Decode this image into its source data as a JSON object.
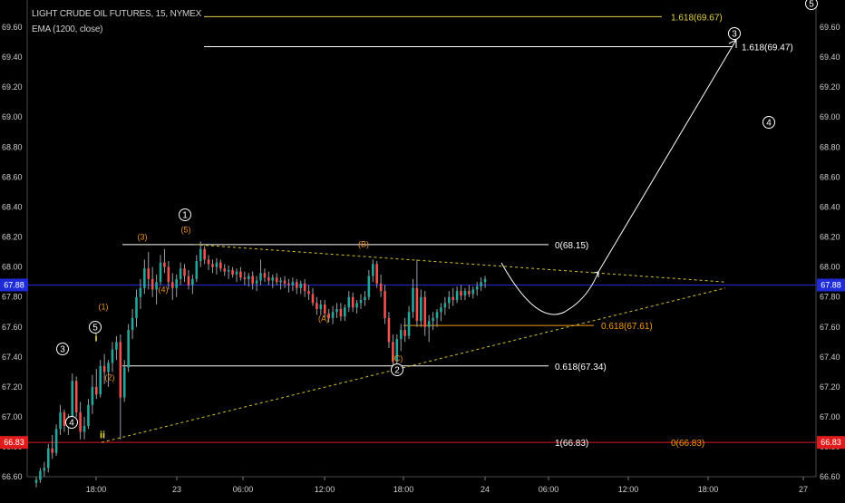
{
  "header": {
    "title": "LIGHT CRUDE OIL FUTURES, 15, NYMEX",
    "indicator": "EMA (1200, close)"
  },
  "colors": {
    "background": "#000000",
    "up": "#26a69a",
    "down": "#ef5350",
    "wick": "#9aa0a6",
    "text": "#cfcfcf",
    "fib_white": "#ffffff",
    "fib_orange": "#f39c12",
    "fib_yellow": "#e4d14b",
    "triangle": "#d4c22f",
    "price_line": "#1e2bd6",
    "red_line": "#e01b1b",
    "wave_orange": "#e8932b",
    "wave_white": "#ffffff",
    "wave_yellow": "#f1e04d"
  },
  "chart_data": {
    "type": "candlestick",
    "x_ticks": [
      "18:00",
      "23",
      "06:00",
      "12:00",
      "18:00",
      "24",
      "06:00",
      "12:00",
      "18:00",
      "27"
    ],
    "y_ticks": [
      "66.60",
      "66.80",
      "67.00",
      "67.20",
      "67.40",
      "67.60",
      "67.80",
      "68.00",
      "68.20",
      "68.40",
      "68.60",
      "68.80",
      "69.00",
      "69.20",
      "69.40",
      "69.60"
    ],
    "ylim": [
      66.5,
      69.65
    ],
    "current_price": {
      "value": 67.88,
      "label": "67.88"
    },
    "red_level": {
      "value": 66.83,
      "label": "66.83"
    },
    "ohlc": [
      [
        66.56,
        66.6,
        66.53,
        66.58
      ],
      [
        66.58,
        66.66,
        66.56,
        66.64
      ],
      [
        66.64,
        66.7,
        66.6,
        66.66
      ],
      [
        66.66,
        66.82,
        66.63,
        66.79
      ],
      [
        66.79,
        66.88,
        66.72,
        66.76
      ],
      [
        66.76,
        66.95,
        66.74,
        66.92
      ],
      [
        66.92,
        67.08,
        66.88,
        67.03
      ],
      [
        67.03,
        67.05,
        66.9,
        66.94
      ],
      [
        66.94,
        67.02,
        66.88,
        66.97
      ],
      [
        66.97,
        67.29,
        66.95,
        67.24
      ],
      [
        67.24,
        67.27,
        67.0,
        67.03
      ],
      [
        67.03,
        67.1,
        66.85,
        66.9
      ],
      [
        66.9,
        67.0,
        66.85,
        66.94
      ],
      [
        66.94,
        67.12,
        66.92,
        67.08
      ],
      [
        67.08,
        67.28,
        67.02,
        67.2
      ],
      [
        67.2,
        67.32,
        67.12,
        67.15
      ],
      [
        67.15,
        67.38,
        67.13,
        67.34
      ],
      [
        67.34,
        67.42,
        67.22,
        67.3
      ],
      [
        67.3,
        67.38,
        67.2,
        67.36
      ],
      [
        67.36,
        67.5,
        67.3,
        67.45
      ],
      [
        67.45,
        67.54,
        67.38,
        67.5
      ],
      [
        67.5,
        67.55,
        66.85,
        67.13
      ],
      [
        67.13,
        67.38,
        67.1,
        67.33
      ],
      [
        67.33,
        67.62,
        67.3,
        67.58
      ],
      [
        67.58,
        67.72,
        67.52,
        67.66
      ],
      [
        67.66,
        67.85,
        67.6,
        67.8
      ],
      [
        67.8,
        67.92,
        67.72,
        67.86
      ],
      [
        67.86,
        68.05,
        67.82,
        67.99
      ],
      [
        67.99,
        68.1,
        67.85,
        67.92
      ],
      [
        67.92,
        68.0,
        67.8,
        67.85
      ],
      [
        67.85,
        67.95,
        67.75,
        67.9
      ],
      [
        67.9,
        68.08,
        67.88,
        68.03
      ],
      [
        68.03,
        68.12,
        67.96,
        68.0
      ],
      [
        68.0,
        68.04,
        67.85,
        67.9
      ],
      [
        67.9,
        67.96,
        67.78,
        67.86
      ],
      [
        67.86,
        67.95,
        67.8,
        67.92
      ],
      [
        67.92,
        68.03,
        67.88,
        67.99
      ],
      [
        67.99,
        68.02,
        67.9,
        67.94
      ],
      [
        67.94,
        67.98,
        67.85,
        67.88
      ],
      [
        67.88,
        67.95,
        67.82,
        67.92
      ],
      [
        67.92,
        68.08,
        67.9,
        68.04
      ],
      [
        68.04,
        68.17,
        68.0,
        68.12
      ],
      [
        68.12,
        68.14,
        68.02,
        68.05
      ],
      [
        68.05,
        68.08,
        67.98,
        68.02
      ],
      [
        68.02,
        68.05,
        67.96,
        68.0
      ],
      [
        68.0,
        68.06,
        67.95,
        68.03
      ],
      [
        68.03,
        68.05,
        67.97,
        67.99
      ],
      [
        67.99,
        68.02,
        67.94,
        67.97
      ],
      [
        67.97,
        68.01,
        67.92,
        67.98
      ],
      [
        67.98,
        68.0,
        67.93,
        67.95
      ],
      [
        67.95,
        67.99,
        67.9,
        67.97
      ],
      [
        67.97,
        68.0,
        67.91,
        67.93
      ],
      [
        67.93,
        67.97,
        67.88,
        67.92
      ],
      [
        67.92,
        67.96,
        67.87,
        67.94
      ],
      [
        67.94,
        67.97,
        67.85,
        67.89
      ],
      [
        67.89,
        67.94,
        67.84,
        67.91
      ],
      [
        67.91,
        68.05,
        67.88,
        67.96
      ],
      [
        67.96,
        67.99,
        67.9,
        67.93
      ],
      [
        67.93,
        67.97,
        67.88,
        67.91
      ],
      [
        67.91,
        67.95,
        67.86,
        67.93
      ],
      [
        67.93,
        67.96,
        67.88,
        67.9
      ],
      [
        67.9,
        67.93,
        67.85,
        67.91
      ],
      [
        67.91,
        67.94,
        67.86,
        67.89
      ],
      [
        67.89,
        67.92,
        67.83,
        67.88
      ],
      [
        67.88,
        67.93,
        67.84,
        67.9
      ],
      [
        67.9,
        67.92,
        67.82,
        67.86
      ],
      [
        67.86,
        67.91,
        67.82,
        67.89
      ],
      [
        67.89,
        67.92,
        67.8,
        67.84
      ],
      [
        67.84,
        67.88,
        67.78,
        67.82
      ],
      [
        67.82,
        67.86,
        67.74,
        67.76
      ],
      [
        67.76,
        67.8,
        67.68,
        67.72
      ],
      [
        67.72,
        67.78,
        67.68,
        67.75
      ],
      [
        67.75,
        67.78,
        67.66,
        67.69
      ],
      [
        67.69,
        67.72,
        67.63,
        67.66
      ],
      [
        67.66,
        67.74,
        67.62,
        67.7
      ],
      [
        67.7,
        67.76,
        67.66,
        67.72
      ],
      [
        67.72,
        67.76,
        67.64,
        67.67
      ],
      [
        67.67,
        67.75,
        67.64,
        67.73
      ],
      [
        67.73,
        67.84,
        67.7,
        67.8
      ],
      [
        67.8,
        67.83,
        67.7,
        67.73
      ],
      [
        67.73,
        67.78,
        67.69,
        67.76
      ],
      [
        67.76,
        67.82,
        67.72,
        67.78
      ],
      [
        67.78,
        67.84,
        67.74,
        67.8
      ],
      [
        67.8,
        67.98,
        67.78,
        67.94
      ],
      [
        67.94,
        68.05,
        67.9,
        68.02
      ],
      [
        68.02,
        68.04,
        67.86,
        67.89
      ],
      [
        67.89,
        67.95,
        67.8,
        67.84
      ],
      [
        67.84,
        67.88,
        67.62,
        67.66
      ],
      [
        67.66,
        67.7,
        67.46,
        67.5
      ],
      [
        67.5,
        67.55,
        67.3,
        67.37
      ],
      [
        67.37,
        67.55,
        67.34,
        67.52
      ],
      [
        67.52,
        67.62,
        67.44,
        67.58
      ],
      [
        67.58,
        67.66,
        67.5,
        67.54
      ],
      [
        67.54,
        67.74,
        67.52,
        67.7
      ],
      [
        67.7,
        67.92,
        67.66,
        67.86
      ],
      [
        67.86,
        68.05,
        67.6,
        67.64
      ],
      [
        67.64,
        67.85,
        67.6,
        67.8
      ],
      [
        67.8,
        67.84,
        67.54,
        67.6
      ],
      [
        67.6,
        67.68,
        67.5,
        67.64
      ],
      [
        67.64,
        67.7,
        67.58,
        67.66
      ],
      [
        67.66,
        67.72,
        67.6,
        67.7
      ],
      [
        67.7,
        67.76,
        67.64,
        67.73
      ],
      [
        67.73,
        67.8,
        67.68,
        67.76
      ],
      [
        67.76,
        67.84,
        67.72,
        67.8
      ],
      [
        67.8,
        67.86,
        67.74,
        67.78
      ],
      [
        67.78,
        67.87,
        67.76,
        67.84
      ],
      [
        67.84,
        67.88,
        67.78,
        67.81
      ],
      [
        67.81,
        67.86,
        67.78,
        67.84
      ],
      [
        67.84,
        67.88,
        67.8,
        67.82
      ],
      [
        67.82,
        67.87,
        67.79,
        67.85
      ],
      [
        67.85,
        67.9,
        67.81,
        67.87
      ],
      [
        67.87,
        67.93,
        67.84,
        67.9
      ],
      [
        67.9,
        67.94,
        67.86,
        67.92
      ]
    ],
    "fib_levels": [
      {
        "label": "1.618(69.67)",
        "value": 69.67,
        "color": "#e4d14b"
      },
      {
        "label": "1.618(69.47)",
        "value": 69.47,
        "color": "#ffffff"
      },
      {
        "label": "0(68.15)",
        "value": 68.15,
        "color": "#ffffff"
      },
      {
        "label": "0.618(67.61)",
        "value": 67.61,
        "color": "#f39c12"
      },
      {
        "label": "0.618(67.34)",
        "value": 67.34,
        "color": "#ffffff"
      },
      {
        "label": "1(66.83)",
        "value": 66.83,
        "color": "#ffffff"
      },
      {
        "label": "0(66.83)",
        "value": 66.83,
        "color": "#f39c12"
      }
    ],
    "wave_labels": [
      {
        "text": "3",
        "style": "circle-white"
      },
      {
        "text": "4",
        "style": "circle-white"
      },
      {
        "text": "5",
        "style": "circle-white"
      },
      {
        "text": "i",
        "style": "plain-yellow"
      },
      {
        "text": "ii",
        "style": "plain-yellow"
      },
      {
        "text": "(1)",
        "style": "plain-orange"
      },
      {
        "text": "(2)",
        "style": "plain-orange"
      },
      {
        "text": "(3)",
        "style": "plain-orange"
      },
      {
        "text": "(4)",
        "style": "plain-orange"
      },
      {
        "text": "(5)",
        "style": "plain-orange"
      },
      {
        "text": "1",
        "style": "circle-white"
      },
      {
        "text": "(A)",
        "style": "plain-orange"
      },
      {
        "text": "(B)",
        "style": "plain-orange"
      },
      {
        "text": "(C)",
        "style": "plain-orange"
      },
      {
        "text": "2",
        "style": "circle-white"
      },
      {
        "text": "3",
        "style": "circle-white"
      },
      {
        "text": "4",
        "style": "circle-white"
      },
      {
        "text": "5",
        "style": "circle-white"
      }
    ]
  }
}
